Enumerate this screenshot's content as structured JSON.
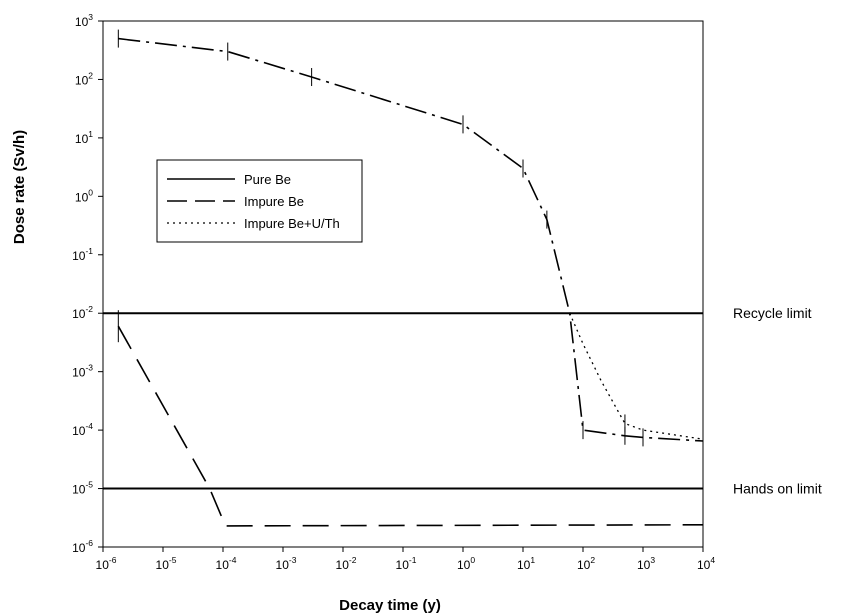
{
  "chart_data": {
    "type": "line",
    "title": "",
    "xlabel": "Decay time (y)",
    "ylabel": "Dose rate (Sv/h)",
    "x_scale": "log",
    "y_scale": "log",
    "xlim": [
      1e-06,
      10000
    ],
    "ylim": [
      1e-06,
      1000
    ],
    "grid": false,
    "legend_placement": "center-left",
    "x_ticks": [
      {
        "base": "10",
        "exp": "-6",
        "value": 1e-06
      },
      {
        "base": "10",
        "exp": "-5",
        "value": 1e-05
      },
      {
        "base": "10",
        "exp": "-4",
        "value": 0.0001
      },
      {
        "base": "10",
        "exp": "-3",
        "value": 0.001
      },
      {
        "base": "10",
        "exp": "-2",
        "value": 0.01
      },
      {
        "base": "10",
        "exp": "-1",
        "value": 0.1
      },
      {
        "base": "10",
        "exp": "0",
        "value": 1
      },
      {
        "base": "10",
        "exp": "1",
        "value": 10
      },
      {
        "base": "10",
        "exp": "2",
        "value": 100
      },
      {
        "base": "10",
        "exp": "3",
        "value": 1000
      },
      {
        "base": "10",
        "exp": "4",
        "value": 10000
      }
    ],
    "y_ticks": [
      {
        "base": "10",
        "exp": "-6",
        "value": 1e-06
      },
      {
        "base": "10",
        "exp": "-5",
        "value": 1e-05
      },
      {
        "base": "10",
        "exp": "-4",
        "value": 0.0001
      },
      {
        "base": "10",
        "exp": "-3",
        "value": 0.001
      },
      {
        "base": "10",
        "exp": "-2",
        "value": 0.01
      },
      {
        "base": "10",
        "exp": "-1",
        "value": 0.1
      },
      {
        "base": "10",
        "exp": "0",
        "value": 1
      },
      {
        "base": "10",
        "exp": "1",
        "value": 10
      },
      {
        "base": "10",
        "exp": "2",
        "value": 100
      },
      {
        "base": "10",
        "exp": "3",
        "value": 1000
      }
    ],
    "reference_lines": [
      {
        "label": "Recycle limit",
        "y": 0.01
      },
      {
        "label": "Hands on limit",
        "y": 1e-05
      }
    ],
    "series": [
      {
        "name": "Pure Be",
        "style": "long-dash",
        "color": "#000000",
        "points": [
          [
            1.8e-06,
            0.006
          ],
          [
            6e-05,
            1e-05
          ],
          [
            0.00011,
            2.3e-06
          ],
          [
            10000,
            2.4e-06
          ]
        ],
        "markers": [
          1.8e-06
        ]
      },
      {
        "name": "Impure Be",
        "style": "dash-dot",
        "color": "#000000",
        "points": [
          [
            1.8e-06,
            500
          ],
          [
            0.00012,
            300
          ],
          [
            0.003,
            110
          ],
          [
            1,
            17
          ],
          [
            10,
            3
          ],
          [
            25,
            0.4
          ],
          [
            60,
            0.01
          ],
          [
            100,
            0.0001
          ],
          [
            500,
            8e-05
          ],
          [
            1000,
            7.5e-05
          ],
          [
            10000,
            6.5e-05
          ]
        ],
        "markers": [
          1.8e-06,
          0.00012,
          0.003,
          1,
          10,
          25,
          100,
          500,
          1000
        ]
      },
      {
        "name": "Impure Be+U/Th",
        "style": "dotted",
        "color": "#000000",
        "points": [
          [
            60,
            0.01
          ],
          [
            100,
            0.003
          ],
          [
            200,
            0.0007
          ],
          [
            500,
            0.00013
          ],
          [
            1000,
            0.0001
          ],
          [
            10000,
            7e-05
          ]
        ],
        "markers": [
          500
        ]
      }
    ]
  }
}
